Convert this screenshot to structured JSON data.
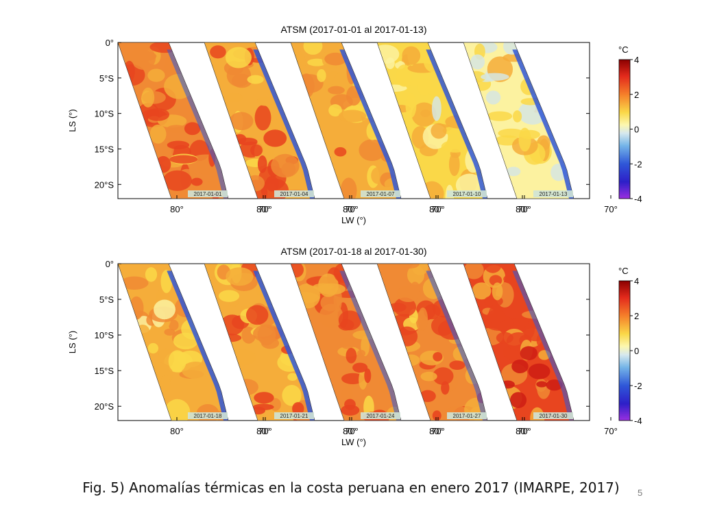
{
  "figure": {
    "caption": "Fig. 5) Anomalías térmicas en la costa peruana en enero 2017 (IMARPE, 2017)",
    "page_number": "5"
  },
  "chart_data": [
    {
      "type": "heatmap",
      "title": "ATSM  (2017-01-01 al 2017-01-13)",
      "xlabel": "LW  (°)",
      "ylabel": "LS  (°)",
      "ytick_labels": [
        "0°",
        "5°S",
        "10°S",
        "15°S",
        "20°S"
      ],
      "yticks": [
        0,
        -5,
        -10,
        -15,
        -20
      ],
      "ylim": [
        -22,
        0
      ],
      "xtick_labels": [
        "80°",
        "70°"
      ],
      "xticks": [
        -80,
        -70
      ],
      "panel_dates": [
        "2017-01-01",
        "2017-01-04",
        "2017-01-07",
        "2017-01-10",
        "2017-01-13"
      ],
      "panel_warmth": [
        0.75,
        0.6,
        0.5,
        0.2,
        0.1
      ],
      "colorbar": {
        "unit": "°C",
        "ticks": [
          "4",
          "2",
          "0",
          "-2",
          "-4"
        ],
        "range": [
          -4,
          4
        ]
      }
    },
    {
      "type": "heatmap",
      "title": "ATSM  (2017-01-18 al 2017-01-30)",
      "xlabel": "LW  (°)",
      "ylabel": "LS  (°)",
      "ytick_labels": [
        "0°",
        "5°S",
        "10°S",
        "15°S",
        "20°S"
      ],
      "yticks": [
        0,
        -5,
        -10,
        -15,
        -20
      ],
      "ylim": [
        -22,
        0
      ],
      "xtick_labels": [
        "80°",
        "70°"
      ],
      "xticks": [
        -80,
        -70
      ],
      "panel_dates": [
        "2017-01-18",
        "2017-01-21",
        "2017-01-24",
        "2017-01-27",
        "2017-01-30"
      ],
      "panel_warmth": [
        0.45,
        0.6,
        0.7,
        0.75,
        0.9
      ],
      "colorbar": {
        "unit": "°C",
        "ticks": [
          "4",
          "2",
          "0",
          "-2",
          "-4"
        ],
        "range": [
          -4,
          4
        ]
      }
    }
  ]
}
